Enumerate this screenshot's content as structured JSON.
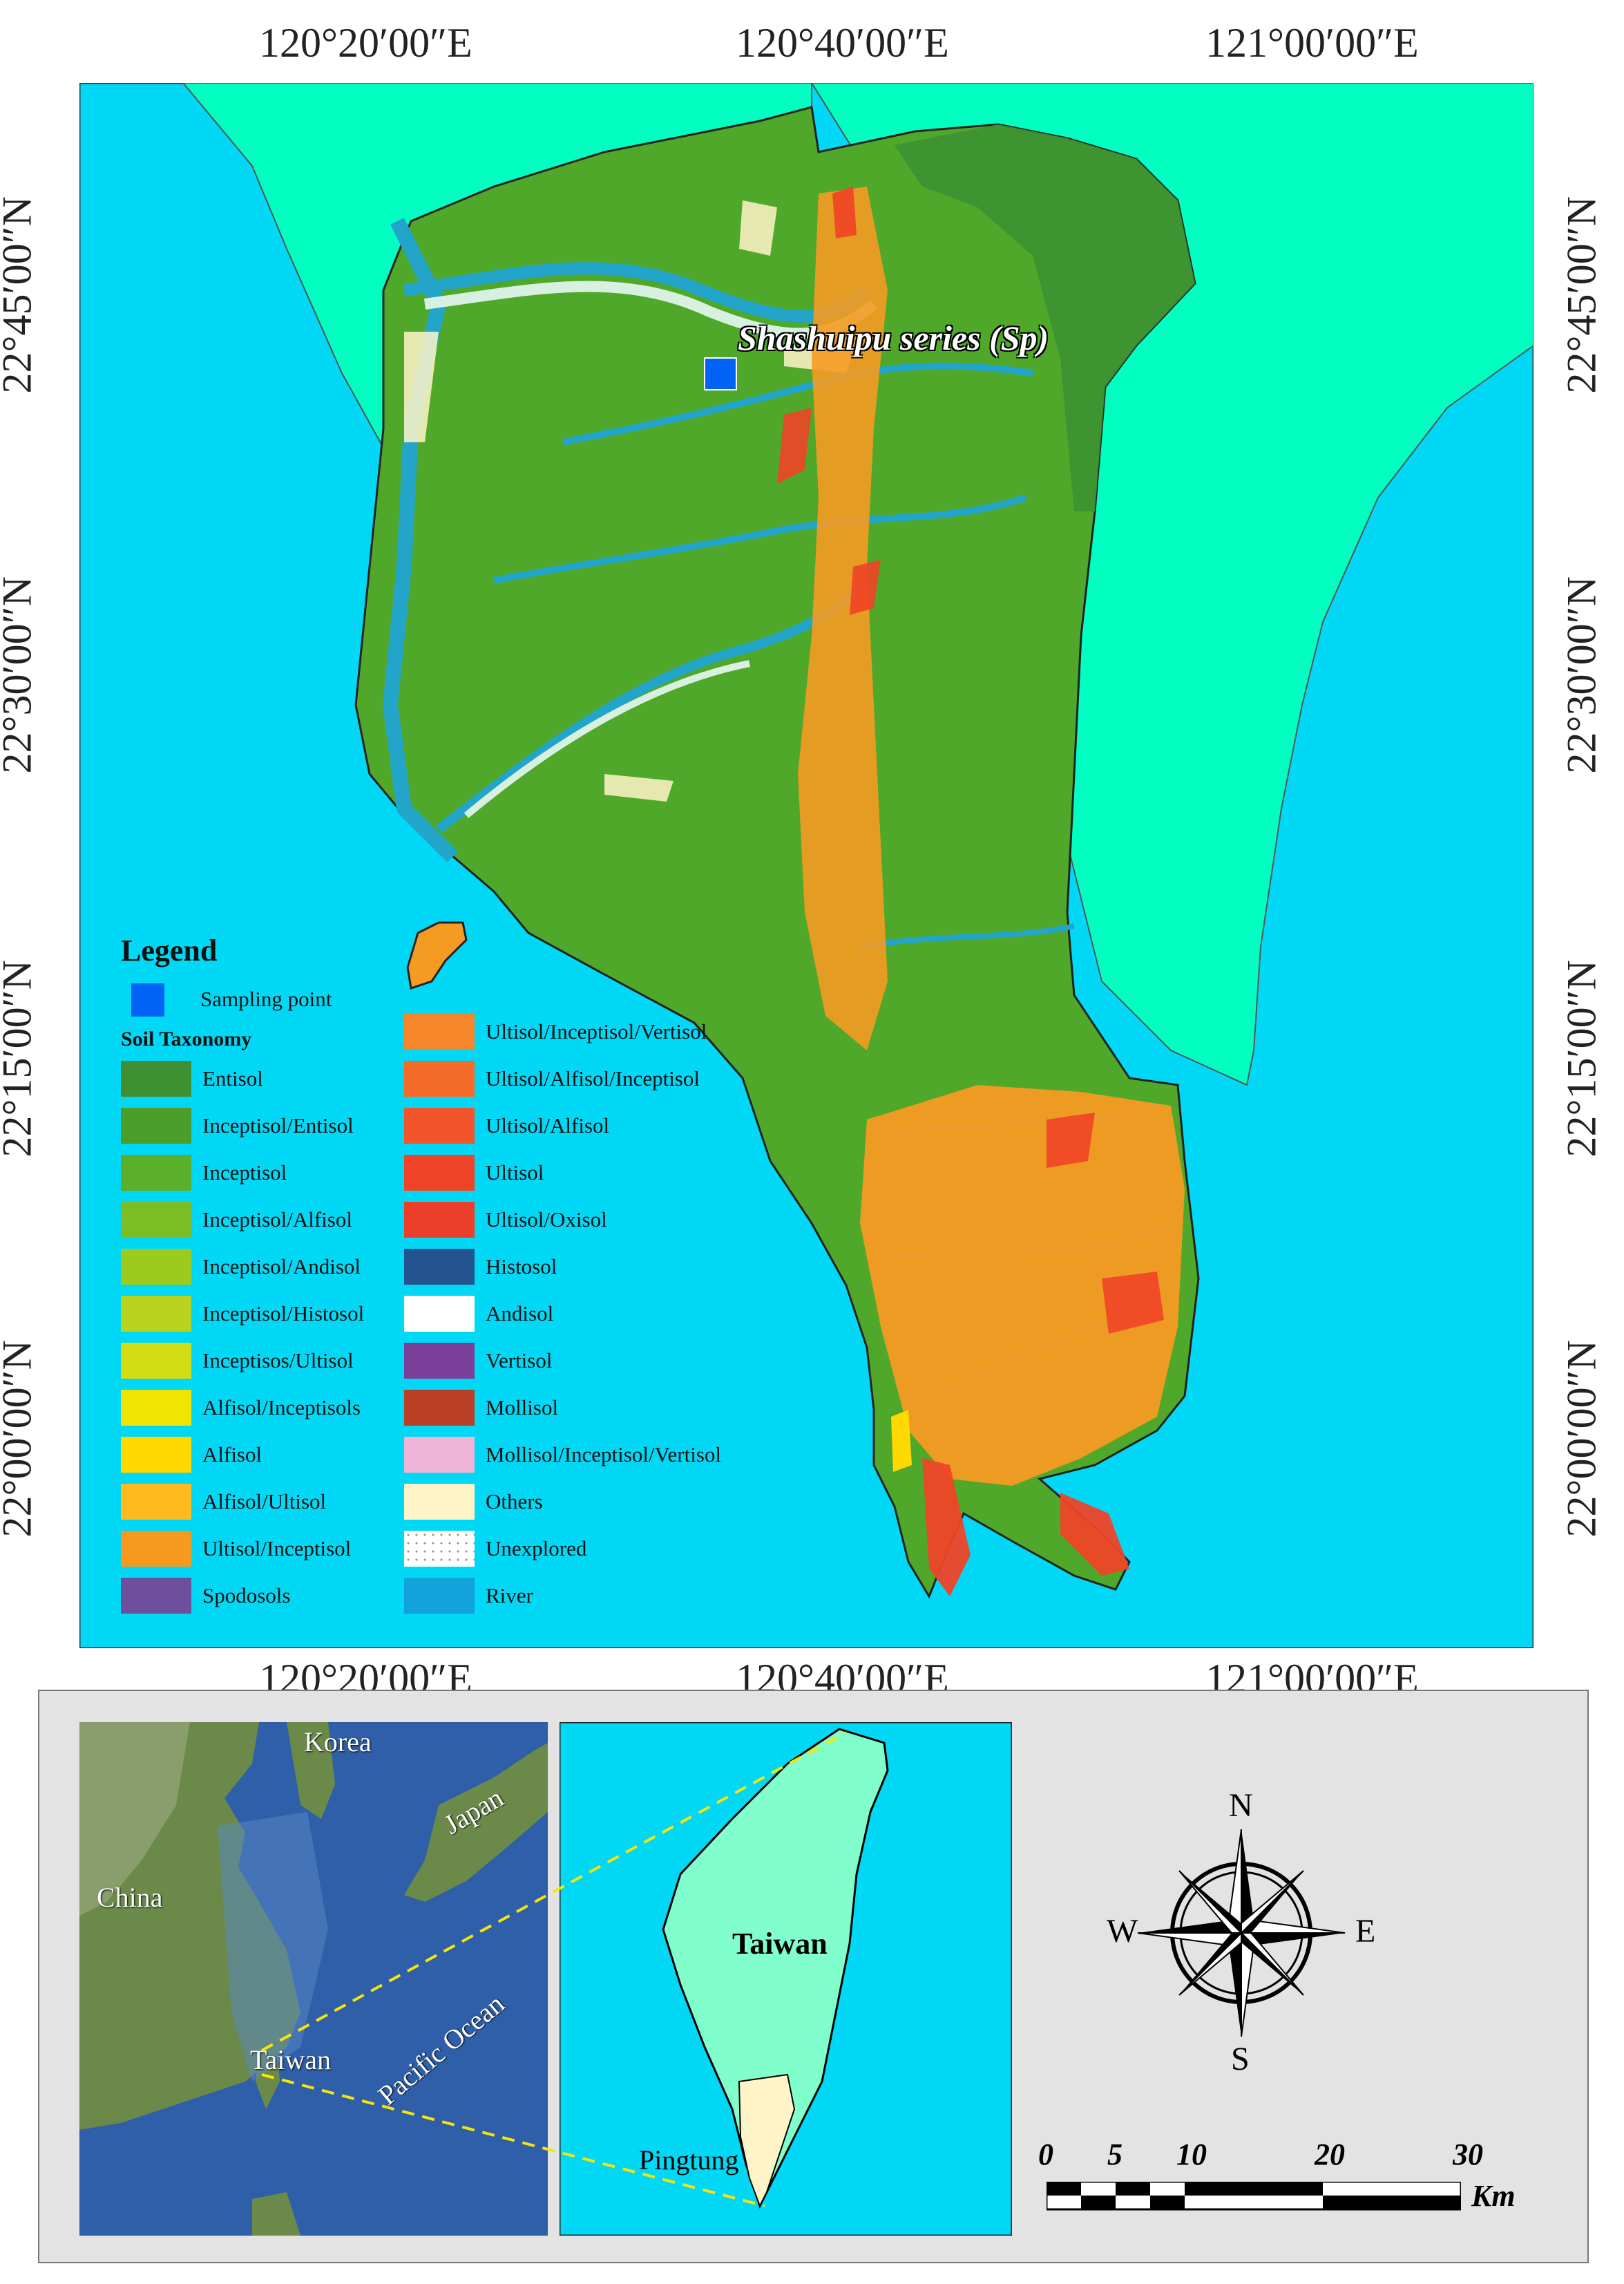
{
  "map": {
    "coords": {
      "lon": [
        "120°20′00″E",
        "120°40′00″E",
        "121°00′00″E"
      ],
      "lat": [
        "22°45′00″N",
        "22°30′00″N",
        "22°15′00″N",
        "22°00′00″N"
      ]
    },
    "sampling_label": "Shashuipu series (Sp)",
    "colors": {
      "sea": "#00d8f5",
      "land_other": "#00ffc0",
      "inceptisol": "#4fa82a",
      "ultisol": "#f59a22",
      "river": "#22a5c8"
    }
  },
  "legend": {
    "title": "Legend",
    "sampling_point": "Sampling point",
    "soil_heading": "Soil Taxonomy",
    "left": [
      {
        "label": "Entisol",
        "color": "#3d9133"
      },
      {
        "label": "Inceptisol/Entisol",
        "color": "#4c9e2b"
      },
      {
        "label": "Inceptisol",
        "color": "#5caf2a"
      },
      {
        "label": "Inceptisol/Alfisol",
        "color": "#7dbd24"
      },
      {
        "label": "Inceptisol/Andisol",
        "color": "#9ccb1e"
      },
      {
        "label": "Inceptisol/Histosol",
        "color": "#b8d41c"
      },
      {
        "label": "Inceptisos/Ultisol",
        "color": "#d4dd14"
      },
      {
        "label": "Alfisol/Inceptisols",
        "color": "#f0e500"
      },
      {
        "label": "Alfisol",
        "color": "#ffd900"
      },
      {
        "label": "Alfisol/Ultisol",
        "color": "#ffba1e"
      },
      {
        "label": "Ultisol/Inceptisol",
        "color": "#f7991e"
      },
      {
        "label": "Spodosols",
        "color": "#6e4f9e"
      }
    ],
    "right": [
      {
        "label": "Ultisol/Inceptisol/Vertisol",
        "color": "#f5862a"
      },
      {
        "label": "Ultisol/Alfisol/Inceptisol",
        "color": "#f56c2a"
      },
      {
        "label": "Ultisol/Alfisol",
        "color": "#f2542b"
      },
      {
        "label": "Ultisol",
        "color": "#ef4427"
      },
      {
        "label": "Ultisol/Oxisol",
        "color": "#ec3f2a"
      },
      {
        "label": "Histosol",
        "color": "#23548f"
      },
      {
        "label": "Andisol",
        "color": "#ffffff"
      },
      {
        "label": "Vertisol",
        "color": "#7a3f98"
      },
      {
        "label": "Mollisol",
        "color": "#b83f23"
      },
      {
        "label": "Mollisol/Inceptisol/Vertisol",
        "color": "#f0b4d6"
      },
      {
        "label": "Others",
        "color": "#fff4c8"
      },
      {
        "label": "Unexplored",
        "color": "#ffffff"
      },
      {
        "label": "River",
        "color": "#11a3d9"
      }
    ]
  },
  "inset": {
    "region": {
      "korea": "Korea",
      "japan": "Japan",
      "china": "China",
      "taiwan": "Taiwan",
      "pacific": "Pacific Ocean"
    },
    "taiwan_map": {
      "taiwan": "Taiwan",
      "pingtung": "Pingtung"
    },
    "compass": {
      "n": "N",
      "s": "S",
      "e": "E",
      "w": "W"
    },
    "scale": {
      "ticks": [
        "0",
        "5",
        "10",
        "20",
        "30"
      ],
      "unit": "Km"
    }
  }
}
